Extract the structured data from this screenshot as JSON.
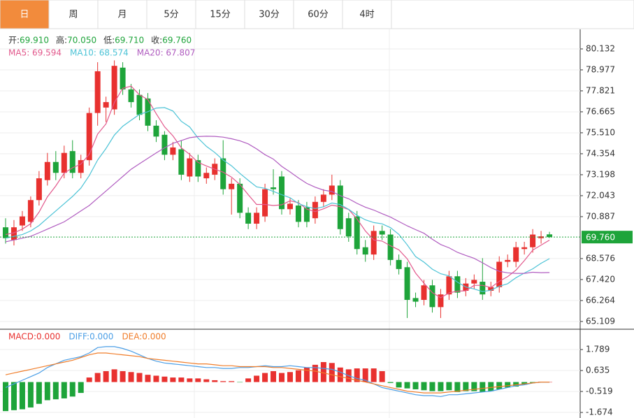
{
  "tabs": {
    "items": [
      "日",
      "周",
      "月",
      "5分",
      "15分",
      "30分",
      "60分",
      "4时"
    ],
    "selected": 0
  },
  "chart_data": [
    {
      "type": "candlestick",
      "info": [
        {
          "name": "开:",
          "value": 69.91,
          "label": "69.910"
        },
        {
          "name": "高:",
          "value": 70.05,
          "label": "70.050"
        },
        {
          "name": "低:",
          "value": 69.71,
          "label": "69.710"
        },
        {
          "name": "收:",
          "value": 69.76,
          "label": "69.760"
        }
      ],
      "up_color": "#e8312f",
      "down_color": "#1ea43a",
      "open": [
        70.3,
        69.6,
        70.4,
        70.6,
        71.8,
        72.9,
        73.9,
        73.3,
        74.5,
        73.3,
        74.0,
        76.6,
        76.9,
        76.8,
        79.1,
        77.9,
        77.6,
        77.4,
        75.9,
        75.4,
        74.3,
        74.6,
        73.1,
        74.0,
        73.0,
        73.2,
        74.1,
        72.4,
        72.7,
        71.1,
        70.5,
        70.9,
        72.5,
        73.1,
        71.3,
        71.5,
        71.4,
        70.8,
        71.7,
        72.1,
        72.6,
        70.8,
        70.9,
        69.2,
        68.8,
        70.1,
        69.9,
        68.5,
        68.1,
        66.4,
        66.3,
        67.1,
        65.9,
        66.6,
        67.6,
        66.8,
        67.2,
        67.3,
        66.8,
        67.0,
        68.4,
        68.4,
        69.1,
        69.2,
        69.7,
        69.91
      ],
      "high": [
        70.8,
        70.7,
        71.2,
        72.0,
        73.4,
        74.4,
        74.5,
        74.8,
        75.1,
        74.3,
        76.9,
        79.4,
        77.5,
        79.5,
        79.4,
        78.2,
        77.9,
        77.7,
        76.2,
        75.6,
        75.0,
        75.1,
        74.4,
        74.3,
        73.6,
        74.1,
        75.1,
        73.0,
        73.0,
        71.4,
        71.4,
        72.7,
        73.5,
        73.4,
        71.9,
        71.8,
        71.7,
        72.0,
        72.4,
        73.2,
        72.9,
        71.1,
        71.2,
        69.6,
        70.4,
        70.4,
        70.2,
        68.8,
        68.4,
        66.7,
        67.4,
        67.4,
        66.9,
        67.9,
        67.9,
        67.5,
        67.7,
        68.6,
        67.3,
        68.7,
        68.8,
        69.5,
        69.5,
        70.2,
        70.1,
        70.05
      ],
      "low": [
        69.4,
        69.3,
        70.1,
        70.3,
        71.5,
        72.6,
        72.9,
        73.0,
        73.0,
        73.0,
        73.7,
        75.9,
        76.1,
        76.5,
        77.6,
        76.9,
        76.2,
        75.6,
        75.0,
        74.0,
        74.0,
        72.9,
        72.8,
        72.8,
        72.7,
        72.9,
        72.1,
        71.0,
        70.8,
        70.2,
        70.2,
        70.6,
        72.1,
        71.0,
        71.0,
        70.3,
        70.3,
        70.5,
        71.4,
        71.8,
        69.9,
        69.5,
        68.8,
        68.4,
        68.5,
        69.6,
        68.2,
        67.7,
        65.3,
        65.9,
        66.0,
        65.6,
        65.3,
        66.3,
        66.4,
        66.5,
        66.9,
        66.3,
        66.5,
        66.7,
        68.1,
        68.1,
        68.8,
        68.9,
        69.4,
        69.71
      ],
      "close": [
        69.7,
        70.3,
        70.9,
        71.8,
        73.0,
        73.9,
        73.3,
        74.4,
        73.3,
        74.0,
        76.6,
        78.9,
        77.2,
        79.2,
        77.9,
        77.2,
        76.5,
        75.9,
        75.3,
        74.3,
        74.7,
        73.2,
        74.1,
        73.1,
        73.3,
        73.8,
        72.4,
        72.7,
        71.1,
        70.5,
        71.1,
        72.4,
        72.4,
        71.3,
        71.6,
        70.6,
        70.6,
        71.7,
        72.1,
        72.6,
        70.2,
        69.8,
        69.1,
        68.8,
        70.1,
        69.9,
        68.5,
        68.0,
        66.3,
        66.2,
        67.1,
        65.9,
        66.6,
        67.6,
        66.7,
        67.2,
        67.4,
        66.6,
        67.0,
        68.4,
        68.5,
        69.2,
        69.2,
        69.9,
        69.8,
        69.76
      ],
      "ma": [
        {
          "name": "MA5",
          "legend_label": "MA5: 69.594",
          "color": "#e2588c",
          "values": [
            69.9,
            70.0,
            70.2,
            70.5,
            71.14,
            71.98,
            72.58,
            73.28,
            73.58,
            73.78,
            74.32,
            75.44,
            76.0,
            77.18,
            77.96,
            78.08,
            77.6,
            77.34,
            76.56,
            75.84,
            75.34,
            74.68,
            74.32,
            73.88,
            73.68,
            73.5,
            73.34,
            73.06,
            72.66,
            72.1,
            71.56,
            71.56,
            71.5,
            71.54,
            71.76,
            71.66,
            71.3,
            71.16,
            71.32,
            71.52,
            71.44,
            71.28,
            70.76,
            70.1,
            69.6,
            69.54,
            69.28,
            69.06,
            68.56,
            67.78,
            67.22,
            66.7,
            66.42,
            66.68,
            66.78,
            66.8,
            67.1,
            67.1,
            66.98,
            67.32,
            67.58,
            67.94,
            68.46,
            69.04,
            69.32,
            69.594
          ]
        },
        {
          "name": "MA10",
          "legend_label": "MA10: 68.574",
          "color": "#4cc3d6",
          "values": [
            69.7,
            69.8,
            69.9,
            70.1,
            70.4,
            70.8,
            71.2,
            71.6,
            72.0,
            72.46,
            73.15,
            74.01,
            74.64,
            75.38,
            75.87,
            76.2,
            76.52,
            76.67,
            76.87,
            76.9,
            76.71,
            76.14,
            75.83,
            75.22,
            74.76,
            74.42,
            74.01,
            73.69,
            73.27,
            72.89,
            72.53,
            72.45,
            72.28,
            72.1,
            71.93,
            71.61,
            71.43,
            71.33,
            71.43,
            71.64,
            71.55,
            71.29,
            70.96,
            70.71,
            70.56,
            70.49,
            70.28,
            69.91,
            69.33,
            68.69,
            68.38,
            67.99,
            67.74,
            67.62,
            67.28,
            67.01,
            66.9,
            66.76,
            66.83,
            67.05,
            67.19,
            67.52,
            67.78,
            68.01,
            68.32,
            68.574
          ]
        },
        {
          "name": "MA20",
          "legend_label": "MA20: 67.807",
          "color": "#b05cc0",
          "values": [
            69.5,
            69.6,
            69.7,
            69.8,
            70.0,
            70.2,
            70.4,
            70.6,
            70.9,
            71.2,
            71.5,
            71.9,
            72.3,
            72.7,
            73.1,
            73.5,
            73.8,
            74.1,
            74.4,
            74.68,
            74.93,
            75.08,
            75.24,
            75.3,
            75.32,
            75.31,
            75.27,
            75.18,
            75.07,
            74.9,
            74.62,
            74.3,
            74.06,
            73.66,
            73.35,
            73.02,
            72.72,
            72.51,
            72.35,
            72.27,
            72.04,
            71.87,
            71.62,
            71.41,
            71.25,
            71.05,
            70.86,
            70.62,
            70.38,
            70.17,
            69.97,
            69.64,
            69.35,
            69.17,
            68.92,
            68.75,
            68.59,
            68.34,
            68.08,
            67.87,
            67.79,
            67.76,
            67.76,
            67.82,
            67.8,
            67.807
          ]
        }
      ],
      "last_price": {
        "value": 69.76,
        "label": "69.760"
      },
      "ylim": [
        64.72,
        81.21
      ],
      "yticks": [
        80.132,
        78.977,
        77.821,
        76.665,
        {
          "value": 75.51,
          "label": "75.510"
        },
        74.354,
        73.198,
        72.043,
        70.887,
        68.576,
        {
          "value": 67.42,
          "label": "67.420"
        },
        66.264,
        65.109
      ],
      "grid": true
    },
    {
      "type": "macd",
      "histogram": {
        "legend_label": "MACD:0.000",
        "up_color": "#e8312f",
        "down_color": "#1ea43a",
        "values": [
          -1.6,
          -1.55,
          -1.5,
          -1.4,
          -1.2,
          -1.0,
          -0.95,
          -0.9,
          -0.8,
          -0.6,
          0.25,
          0.5,
          0.6,
          0.7,
          0.6,
          0.55,
          0.5,
          0.4,
          0.35,
          0.3,
          0.25,
          0.25,
          0.2,
          0.2,
          0.15,
          0.1,
          0.05,
          0.05,
          -0.02,
          0.2,
          0.35,
          0.5,
          0.6,
          0.5,
          0.55,
          0.65,
          0.8,
          0.95,
          1.1,
          1.05,
          0.8,
          0.7,
          0.75,
          0.75,
          0.75,
          0.6,
          -0.05,
          -0.3,
          -0.35,
          -0.4,
          -0.45,
          -0.5,
          -0.5,
          -0.45,
          -0.55,
          -0.5,
          -0.5,
          -0.55,
          -0.5,
          -0.4,
          -0.3,
          -0.25,
          -0.15,
          -0.05,
          0.02,
          0.0
        ]
      },
      "series": [
        {
          "name": "DIFF",
          "legend_label": "DIFF:0.000",
          "color": "#4a9ee6",
          "values": [
            -0.3,
            -0.1,
            0.1,
            0.3,
            0.5,
            0.8,
            1.0,
            1.2,
            1.3,
            1.4,
            1.6,
            1.9,
            1.95,
            1.95,
            1.85,
            1.7,
            1.5,
            1.3,
            1.15,
            1.05,
            1.0,
            0.95,
            0.9,
            0.85,
            0.8,
            0.8,
            0.75,
            0.75,
            0.8,
            0.8,
            0.85,
            0.9,
            0.85,
            0.85,
            0.9,
            0.85,
            0.8,
            0.8,
            0.75,
            0.7,
            0.55,
            0.35,
            0.2,
            0.1,
            -0.1,
            -0.3,
            -0.4,
            -0.5,
            -0.6,
            -0.7,
            -0.75,
            -0.75,
            -0.8,
            -0.7,
            -0.7,
            -0.65,
            -0.6,
            -0.55,
            -0.5,
            -0.4,
            -0.3,
            -0.2,
            -0.15,
            -0.05,
            0.0,
            0.0
          ]
        },
        {
          "name": "DEA",
          "legend_label": "DEA:0.000",
          "color": "#f07d2a",
          "values": [
            0.4,
            0.5,
            0.6,
            0.7,
            0.8,
            0.9,
            1.0,
            1.1,
            1.2,
            1.35,
            1.5,
            1.6,
            1.6,
            1.55,
            1.5,
            1.45,
            1.4,
            1.3,
            1.25,
            1.2,
            1.15,
            1.1,
            1.05,
            1.0,
            1.0,
            0.95,
            0.9,
            0.9,
            0.85,
            0.85,
            0.85,
            0.85,
            0.8,
            0.8,
            0.75,
            0.7,
            0.65,
            0.6,
            0.5,
            0.4,
            0.3,
            0.2,
            0.1,
            0.0,
            -0.1,
            -0.2,
            -0.3,
            -0.4,
            -0.5,
            -0.55,
            -0.6,
            -0.6,
            -0.6,
            -0.55,
            -0.5,
            -0.45,
            -0.4,
            -0.35,
            -0.3,
            -0.25,
            -0.2,
            -0.15,
            -0.1,
            -0.05,
            0.0,
            0.0
          ]
        }
      ],
      "ylim": [
        -1.98,
        2.87
      ],
      "yticks": [
        1.789,
        0.635,
        -0.519,
        -1.674
      ],
      "grid": true
    }
  ]
}
